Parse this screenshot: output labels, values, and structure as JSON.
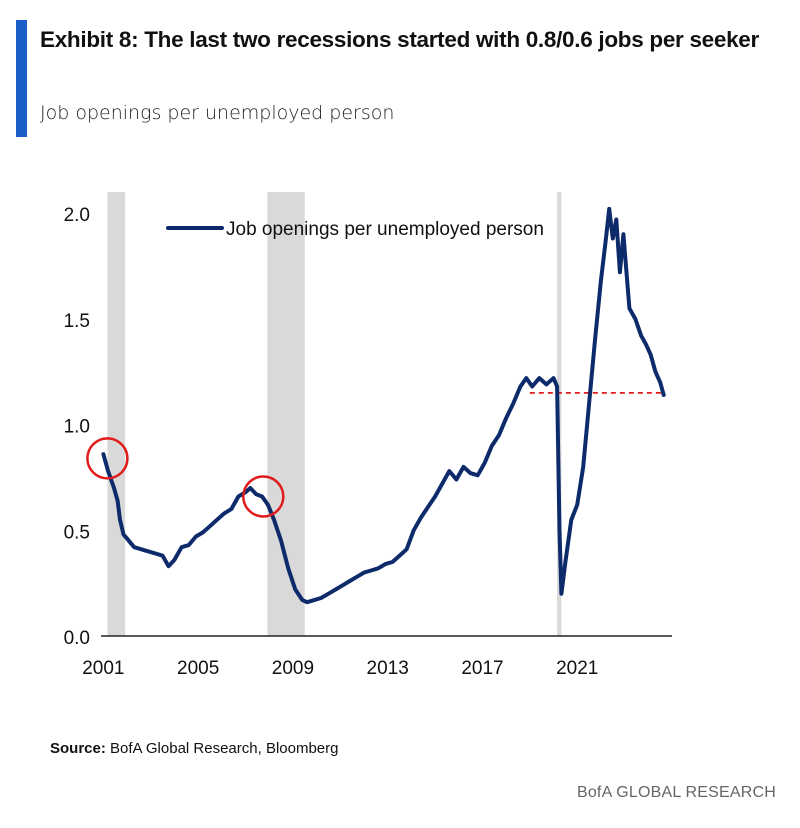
{
  "header": {
    "title": "Exhibit 8: The last two recessions started with 0.8/0.6 jobs per seeker",
    "subtitle": "Job openings per unemployed person"
  },
  "source": {
    "label": "Source:",
    "text": "BofA Global Research, Bloomberg"
  },
  "footer": {
    "brand": "BofA GLOBAL RESEARCH"
  },
  "colors": {
    "accent": "#1a5fc7",
    "series": "#0d2a6b",
    "recession": "#d9d9d9",
    "highlight": "#e01b1b"
  },
  "chart_data": {
    "type": "line",
    "xlabel": "",
    "ylabel": "",
    "xlim": [
      2000.9,
      2025.0
    ],
    "ylim": [
      0.0,
      2.1
    ],
    "x_ticks": [
      2001,
      2005,
      2009,
      2013,
      2017,
      2021
    ],
    "y_ticks": [
      0.0,
      0.5,
      1.0,
      1.5,
      2.0
    ],
    "y_tick_labels": [
      "0.0",
      "0.5",
      "1.0",
      "1.5",
      "2.0"
    ],
    "grid": false,
    "legend_position": "top-left",
    "recession_bands": [
      [
        2001.17,
        2001.92
      ],
      [
        2007.92,
        2009.5
      ],
      [
        2020.15,
        2020.33
      ]
    ],
    "reference_line": {
      "y": 1.15,
      "x_start": 2019.0,
      "x_end": 2024.65,
      "style": "dashed",
      "color": "#e01b1b"
    },
    "highlight_circles": [
      {
        "x": 2001.17,
        "y": 0.84
      },
      {
        "x": 2007.75,
        "y": 0.66
      }
    ],
    "series": [
      {
        "name": "Job openings per unemployed person",
        "points": [
          [
            2001.0,
            0.86
          ],
          [
            2001.2,
            0.78
          ],
          [
            2001.45,
            0.7
          ],
          [
            2001.6,
            0.64
          ],
          [
            2001.7,
            0.55
          ],
          [
            2001.85,
            0.48
          ],
          [
            2002.0,
            0.46
          ],
          [
            2002.3,
            0.42
          ],
          [
            2002.6,
            0.41
          ],
          [
            2002.9,
            0.4
          ],
          [
            2003.2,
            0.39
          ],
          [
            2003.5,
            0.38
          ],
          [
            2003.75,
            0.33
          ],
          [
            2004.0,
            0.36
          ],
          [
            2004.3,
            0.42
          ],
          [
            2004.6,
            0.43
          ],
          [
            2004.9,
            0.47
          ],
          [
            2005.2,
            0.49
          ],
          [
            2005.5,
            0.52
          ],
          [
            2005.8,
            0.55
          ],
          [
            2006.1,
            0.58
          ],
          [
            2006.4,
            0.6
          ],
          [
            2006.7,
            0.66
          ],
          [
            2007.0,
            0.68
          ],
          [
            2007.2,
            0.7
          ],
          [
            2007.45,
            0.67
          ],
          [
            2007.7,
            0.66
          ],
          [
            2007.95,
            0.62
          ],
          [
            2008.2,
            0.55
          ],
          [
            2008.5,
            0.45
          ],
          [
            2008.8,
            0.32
          ],
          [
            2009.1,
            0.22
          ],
          [
            2009.4,
            0.17
          ],
          [
            2009.6,
            0.16
          ],
          [
            2009.9,
            0.17
          ],
          [
            2010.2,
            0.18
          ],
          [
            2010.5,
            0.2
          ],
          [
            2010.8,
            0.22
          ],
          [
            2011.1,
            0.24
          ],
          [
            2011.4,
            0.26
          ],
          [
            2011.7,
            0.28
          ],
          [
            2012.0,
            0.3
          ],
          [
            2012.3,
            0.31
          ],
          [
            2012.6,
            0.32
          ],
          [
            2012.9,
            0.34
          ],
          [
            2013.2,
            0.35
          ],
          [
            2013.5,
            0.38
          ],
          [
            2013.8,
            0.41
          ],
          [
            2014.1,
            0.5
          ],
          [
            2014.4,
            0.56
          ],
          [
            2014.7,
            0.61
          ],
          [
            2015.0,
            0.66
          ],
          [
            2015.3,
            0.72
          ],
          [
            2015.6,
            0.78
          ],
          [
            2015.9,
            0.74
          ],
          [
            2016.2,
            0.8
          ],
          [
            2016.5,
            0.77
          ],
          [
            2016.8,
            0.76
          ],
          [
            2017.1,
            0.82
          ],
          [
            2017.4,
            0.9
          ],
          [
            2017.7,
            0.95
          ],
          [
            2018.0,
            1.03
          ],
          [
            2018.3,
            1.1
          ],
          [
            2018.6,
            1.18
          ],
          [
            2018.85,
            1.22
          ],
          [
            2019.1,
            1.18
          ],
          [
            2019.4,
            1.22
          ],
          [
            2019.7,
            1.19
          ],
          [
            2020.0,
            1.22
          ],
          [
            2020.15,
            1.18
          ],
          [
            2020.25,
            0.5
          ],
          [
            2020.33,
            0.2
          ],
          [
            2020.5,
            0.35
          ],
          [
            2020.75,
            0.55
          ],
          [
            2021.0,
            0.62
          ],
          [
            2021.25,
            0.8
          ],
          [
            2021.5,
            1.1
          ],
          [
            2021.75,
            1.4
          ],
          [
            2022.0,
            1.68
          ],
          [
            2022.2,
            1.87
          ],
          [
            2022.35,
            2.02
          ],
          [
            2022.5,
            1.88
          ],
          [
            2022.65,
            1.97
          ],
          [
            2022.8,
            1.72
          ],
          [
            2022.95,
            1.9
          ],
          [
            2023.2,
            1.55
          ],
          [
            2023.45,
            1.5
          ],
          [
            2023.7,
            1.42
          ],
          [
            2023.9,
            1.38
          ],
          [
            2024.1,
            1.33
          ],
          [
            2024.3,
            1.25
          ],
          [
            2024.5,
            1.2
          ],
          [
            2024.65,
            1.14
          ]
        ]
      }
    ]
  }
}
